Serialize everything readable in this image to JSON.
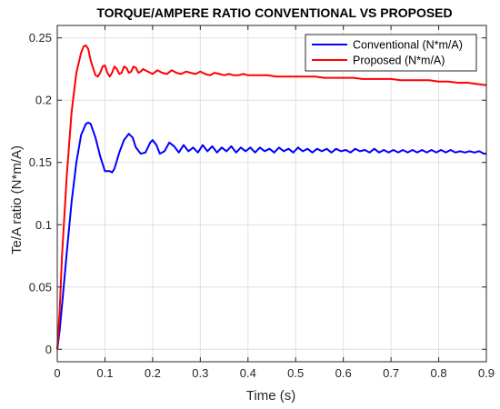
{
  "chart_data": {
    "type": "line",
    "title": "TORQUE/AMPERE RATIO CONVENTIONAL VS PROPOSED",
    "xlabel": "Time (s)",
    "ylabel": "Te/A ratio (N*m/A)",
    "xlim": [
      0,
      0.9
    ],
    "ylim": [
      -0.01,
      0.26
    ],
    "xticks": [
      0,
      0.1,
      0.2,
      0.3,
      0.4,
      0.5,
      0.6,
      0.7,
      0.8,
      0.9
    ],
    "xtick_labels": [
      "0",
      "0.1",
      "0.2",
      "0.3",
      "0.4",
      "0.5",
      "0.6",
      "0.7",
      "0.8",
      "0.9"
    ],
    "yticks": [
      0,
      0.05,
      0.1,
      0.15,
      0.2,
      0.25
    ],
    "ytick_labels": [
      "0",
      "0.05",
      "0.1",
      "0.15",
      "0.2",
      "0.25"
    ],
    "grid": true,
    "legend_position": "top-right",
    "series": [
      {
        "name": "Conventional (N*m/A)",
        "color": "#0000ff",
        "x": [
          0,
          0.005,
          0.01,
          0.02,
          0.03,
          0.04,
          0.05,
          0.06,
          0.065,
          0.07,
          0.08,
          0.09,
          0.1,
          0.11,
          0.115,
          0.12,
          0.13,
          0.14,
          0.15,
          0.158,
          0.165,
          0.175,
          0.185,
          0.195,
          0.2,
          0.208,
          0.215,
          0.225,
          0.235,
          0.245,
          0.255,
          0.265,
          0.275,
          0.285,
          0.295,
          0.305,
          0.315,
          0.325,
          0.335,
          0.345,
          0.355,
          0.365,
          0.375,
          0.385,
          0.395,
          0.405,
          0.415,
          0.425,
          0.435,
          0.445,
          0.455,
          0.465,
          0.475,
          0.485,
          0.495,
          0.505,
          0.515,
          0.525,
          0.535,
          0.545,
          0.555,
          0.565,
          0.575,
          0.585,
          0.595,
          0.605,
          0.615,
          0.625,
          0.635,
          0.645,
          0.655,
          0.665,
          0.675,
          0.685,
          0.695,
          0.705,
          0.715,
          0.725,
          0.735,
          0.745,
          0.755,
          0.765,
          0.775,
          0.785,
          0.795,
          0.805,
          0.815,
          0.825,
          0.835,
          0.845,
          0.855,
          0.865,
          0.875,
          0.885,
          0.895,
          0.9
        ],
        "y": [
          0,
          0.015,
          0.035,
          0.078,
          0.118,
          0.15,
          0.172,
          0.181,
          0.182,
          0.181,
          0.17,
          0.155,
          0.143,
          0.143,
          0.142,
          0.145,
          0.158,
          0.168,
          0.173,
          0.17,
          0.162,
          0.157,
          0.158,
          0.166,
          0.168,
          0.164,
          0.157,
          0.159,
          0.166,
          0.163,
          0.158,
          0.164,
          0.159,
          0.162,
          0.158,
          0.164,
          0.159,
          0.163,
          0.158,
          0.162,
          0.159,
          0.163,
          0.158,
          0.162,
          0.159,
          0.162,
          0.158,
          0.162,
          0.159,
          0.161,
          0.158,
          0.162,
          0.159,
          0.161,
          0.158,
          0.162,
          0.159,
          0.161,
          0.158,
          0.161,
          0.159,
          0.161,
          0.158,
          0.161,
          0.159,
          0.16,
          0.158,
          0.161,
          0.159,
          0.16,
          0.158,
          0.161,
          0.158,
          0.16,
          0.158,
          0.16,
          0.158,
          0.16,
          0.158,
          0.16,
          0.158,
          0.16,
          0.158,
          0.16,
          0.158,
          0.16,
          0.158,
          0.16,
          0.158,
          0.159,
          0.158,
          0.159,
          0.158,
          0.159,
          0.157,
          0.157
        ]
      },
      {
        "name": "Proposed (N*m/A)",
        "color": "#ff0000",
        "x": [
          0,
          0.005,
          0.01,
          0.02,
          0.03,
          0.04,
          0.05,
          0.055,
          0.06,
          0.065,
          0.07,
          0.08,
          0.085,
          0.09,
          0.095,
          0.1,
          0.105,
          0.11,
          0.115,
          0.12,
          0.125,
          0.13,
          0.135,
          0.14,
          0.145,
          0.15,
          0.155,
          0.16,
          0.165,
          0.17,
          0.175,
          0.18,
          0.19,
          0.2,
          0.21,
          0.22,
          0.23,
          0.24,
          0.25,
          0.26,
          0.27,
          0.28,
          0.29,
          0.3,
          0.31,
          0.32,
          0.33,
          0.34,
          0.35,
          0.36,
          0.37,
          0.38,
          0.39,
          0.4,
          0.42,
          0.44,
          0.46,
          0.48,
          0.5,
          0.52,
          0.54,
          0.56,
          0.58,
          0.6,
          0.62,
          0.64,
          0.66,
          0.68,
          0.7,
          0.72,
          0.74,
          0.76,
          0.78,
          0.8,
          0.82,
          0.84,
          0.86,
          0.88,
          0.9
        ],
        "y": [
          0,
          0.03,
          0.075,
          0.14,
          0.19,
          0.222,
          0.238,
          0.243,
          0.244,
          0.241,
          0.232,
          0.22,
          0.219,
          0.222,
          0.227,
          0.228,
          0.222,
          0.219,
          0.222,
          0.227,
          0.225,
          0.221,
          0.222,
          0.227,
          0.226,
          0.222,
          0.223,
          0.227,
          0.226,
          0.222,
          0.223,
          0.225,
          0.223,
          0.221,
          0.224,
          0.222,
          0.221,
          0.224,
          0.222,
          0.221,
          0.223,
          0.222,
          0.221,
          0.223,
          0.221,
          0.22,
          0.222,
          0.221,
          0.22,
          0.221,
          0.22,
          0.22,
          0.221,
          0.22,
          0.22,
          0.22,
          0.219,
          0.219,
          0.219,
          0.219,
          0.219,
          0.218,
          0.218,
          0.218,
          0.218,
          0.217,
          0.217,
          0.217,
          0.217,
          0.216,
          0.216,
          0.216,
          0.216,
          0.215,
          0.215,
          0.214,
          0.214,
          0.213,
          0.212
        ]
      }
    ]
  }
}
